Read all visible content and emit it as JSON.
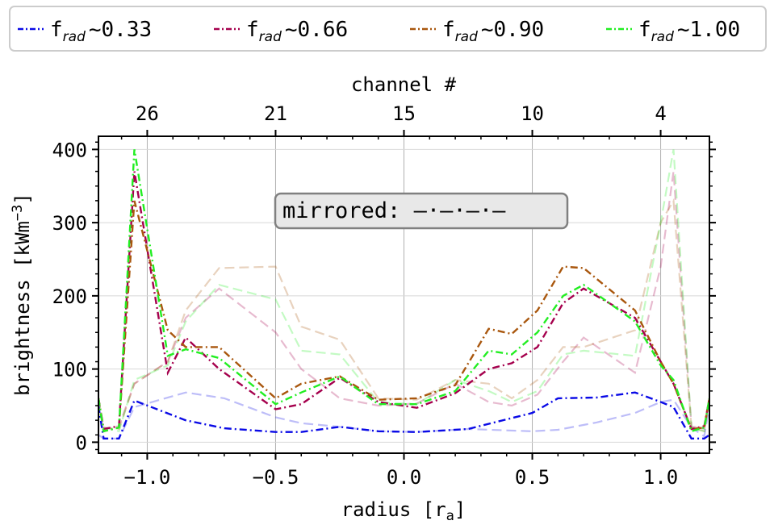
{
  "chart_data": {
    "type": "line",
    "xlabel": "radius [r",
    "xlabel_sub": "a",
    "xlabel_suffix": "]",
    "ylabel": "brightness [kWm",
    "ylabel_sup": "−3",
    "ylabel_suffix": "]",
    "top_axis_label": "channel #",
    "xlim": [
      -1.19,
      1.19
    ],
    "ylim": [
      -15,
      418
    ],
    "x_ticks": [
      "−1.0",
      "−0.5",
      "0.0",
      "0.5",
      "1.0"
    ],
    "x_tick_values": [
      -1.0,
      -0.5,
      0.0,
      0.5,
      1.0
    ],
    "y_ticks": [
      "0",
      "100",
      "200",
      "300",
      "400"
    ],
    "y_tick_values": [
      0,
      100,
      200,
      300,
      400
    ],
    "top_ticks": [
      "26",
      "21",
      "15",
      "10",
      "4"
    ],
    "top_tick_values": [
      -1.0,
      -0.5,
      0.0,
      0.5,
      1.0
    ],
    "grid": true,
    "legend_position": "top",
    "annotation": {
      "text": "mirrored: ",
      "dashes": "—·—·—·—",
      "x": 0.0,
      "y": 308
    },
    "series": [
      {
        "label_prefix": "f",
        "label_sub": "rad",
        "label_value": "~0.33",
        "color": "#0a0ae6",
        "x": [
          -1.19,
          -1.17,
          -1.11,
          -1.05,
          -0.85,
          -0.7,
          -0.5,
          -0.4,
          -0.25,
          -0.1,
          0.05,
          0.25,
          0.5,
          0.6,
          0.75,
          0.9,
          1.0,
          1.05,
          1.12,
          1.17,
          1.19
        ],
        "y": [
          50,
          5,
          5,
          57,
          30,
          19,
          14,
          14,
          21,
          15,
          14,
          18,
          40,
          60,
          61,
          68,
          55,
          48,
          5,
          5,
          10
        ],
        "mirror_y": [
          10,
          5,
          5,
          48,
          68,
          60,
          34,
          26,
          21,
          15,
          14,
          18,
          15,
          17,
          27,
          40,
          55,
          58,
          20,
          8,
          50
        ]
      },
      {
        "label_prefix": "f",
        "label_sub": "rad",
        "label_value": "~0.66",
        "color": "#a5004d",
        "x": [
          -1.19,
          -1.17,
          -1.11,
          -1.05,
          -0.92,
          -0.85,
          -0.72,
          -0.5,
          -0.4,
          -0.25,
          -0.1,
          0.05,
          0.2,
          0.33,
          0.42,
          0.52,
          0.62,
          0.7,
          0.9,
          1.0,
          1.05,
          1.12,
          1.17,
          1.19
        ],
        "y": [
          60,
          18,
          22,
          370,
          95,
          143,
          100,
          45,
          52,
          88,
          55,
          47,
          67,
          100,
          108,
          130,
          190,
          210,
          170,
          110,
          80,
          18,
          22,
          60
        ],
        "mirror_y": [
          60,
          18,
          22,
          80,
          110,
          170,
          210,
          150,
          100,
          60,
          50,
          53,
          80,
          55,
          50,
          65,
          110,
          143,
          95,
          240,
          370,
          22,
          18,
          60
        ]
      },
      {
        "label_prefix": "f",
        "label_sub": "rad",
        "label_value": "~0.90",
        "color": "#a9570e",
        "x": [
          -1.19,
          -1.17,
          -1.11,
          -1.05,
          -0.92,
          -0.85,
          -0.72,
          -0.5,
          -0.4,
          -0.25,
          -0.1,
          0.05,
          0.2,
          0.33,
          0.42,
          0.52,
          0.62,
          0.7,
          0.9,
          1.0,
          1.05,
          1.12,
          1.17,
          1.19
        ],
        "y": [
          60,
          15,
          20,
          330,
          153,
          130,
          130,
          60,
          80,
          90,
          58,
          60,
          78,
          155,
          148,
          180,
          240,
          238,
          180,
          110,
          80,
          18,
          20,
          60
        ],
        "mirror_y": [
          60,
          20,
          18,
          80,
          110,
          180,
          238,
          240,
          158,
          140,
          60,
          58,
          85,
          80,
          60,
          85,
          130,
          130,
          153,
          300,
          330,
          20,
          15,
          60
        ]
      },
      {
        "label_prefix": "f",
        "label_sub": "rad",
        "label_value": "~1.00",
        "color": "#22ee22",
        "x": [
          -1.19,
          -1.17,
          -1.11,
          -1.05,
          -0.92,
          -0.85,
          -0.72,
          -0.5,
          -0.4,
          -0.25,
          -0.1,
          0.05,
          0.2,
          0.33,
          0.42,
          0.52,
          0.62,
          0.7,
          0.9,
          1.0,
          1.05,
          1.12,
          1.17,
          1.19
        ],
        "y": [
          60,
          15,
          20,
          400,
          118,
          127,
          115,
          52,
          68,
          90,
          52,
          52,
          70,
          125,
          120,
          150,
          200,
          215,
          165,
          105,
          85,
          15,
          20,
          60
        ],
        "mirror_y": [
          60,
          20,
          15,
          85,
          105,
          165,
          215,
          195,
          125,
          120,
          55,
          52,
          85,
          70,
          55,
          70,
          120,
          125,
          118,
          300,
          400,
          20,
          15,
          60
        ]
      }
    ]
  }
}
